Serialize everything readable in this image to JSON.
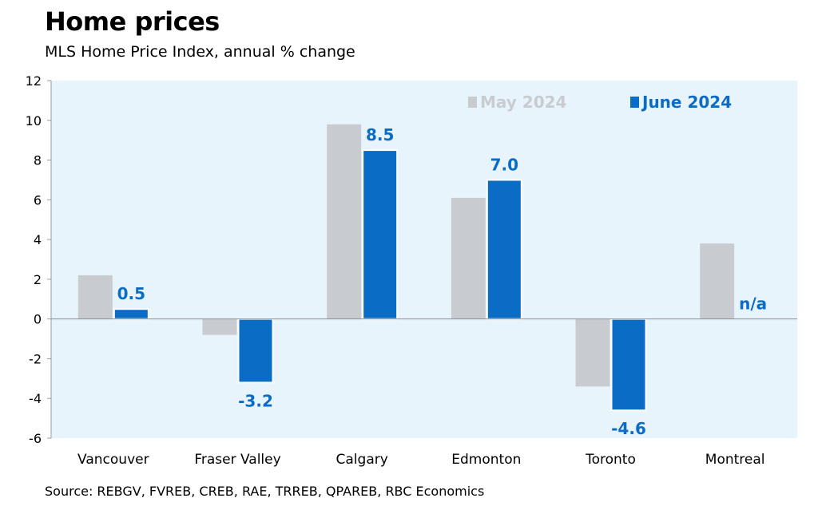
{
  "header": {
    "title": "Home prices",
    "subtitle": "MLS Home Price Index, annual % change"
  },
  "footer": {
    "source": "Source: REBGV, FVREB, CREB, RAE, TRREB, QPAREB, RBC Economics"
  },
  "colors": {
    "plot_background": "#e8f4fc",
    "may_series": "#c8ccd1",
    "june_series": "#0a6cc4",
    "june_label": "#0a6cc4",
    "may_legend_text": "#c8ccd1"
  },
  "chart_data": {
    "type": "bar",
    "title": "Home prices",
    "subtitle": "MLS Home Price Index, annual % change",
    "xlabel": "",
    "ylabel": "",
    "ylim": [
      -6,
      12
    ],
    "yticks": [
      "12",
      "10",
      "8",
      "6",
      "4",
      "2",
      "0",
      "-2",
      "-4",
      "-6"
    ],
    "categories": [
      "Vancouver",
      "Fraser Valley",
      "Calgary",
      "Edmonton",
      "Toronto",
      "Montreal"
    ],
    "series": [
      {
        "name": "May 2024",
        "values": [
          2.2,
          -0.8,
          9.8,
          6.1,
          -3.4,
          3.8
        ]
      },
      {
        "name": "June 2024",
        "values": [
          0.5,
          -3.2,
          8.5,
          7.0,
          -4.6,
          null
        ]
      }
    ],
    "data_labels": [
      "0.5",
      "-3.2",
      "8.5",
      "7.0",
      "-4.6",
      "n/a"
    ],
    "legend_position": "top-right",
    "grid": false
  }
}
